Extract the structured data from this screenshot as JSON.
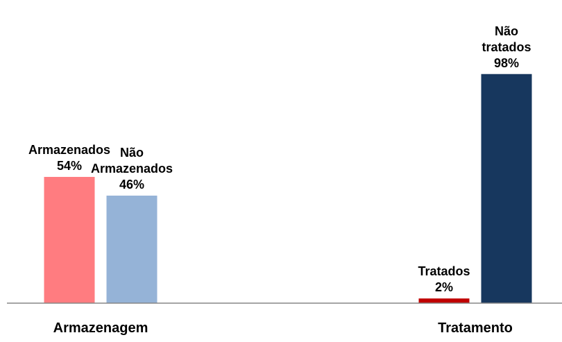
{
  "chart_data": {
    "type": "bar",
    "groups": [
      {
        "name": "Armazenagem",
        "bars": [
          {
            "name": "Armazenados",
            "value": 54,
            "value_label": "54%",
            "color": "#ff7c80"
          },
          {
            "name": "Não Armazenados",
            "value": 46,
            "value_label": "46%",
            "color": "#95b3d7"
          }
        ]
      },
      {
        "name": "Tratamento",
        "bars": [
          {
            "name": "Tratados",
            "value": 2,
            "value_label": "2%",
            "color": "#c00000"
          },
          {
            "name": "Não tratados",
            "value": 98,
            "value_label": "98%",
            "color": "#17375e"
          }
        ]
      }
    ],
    "ylim": [
      0,
      100
    ]
  }
}
